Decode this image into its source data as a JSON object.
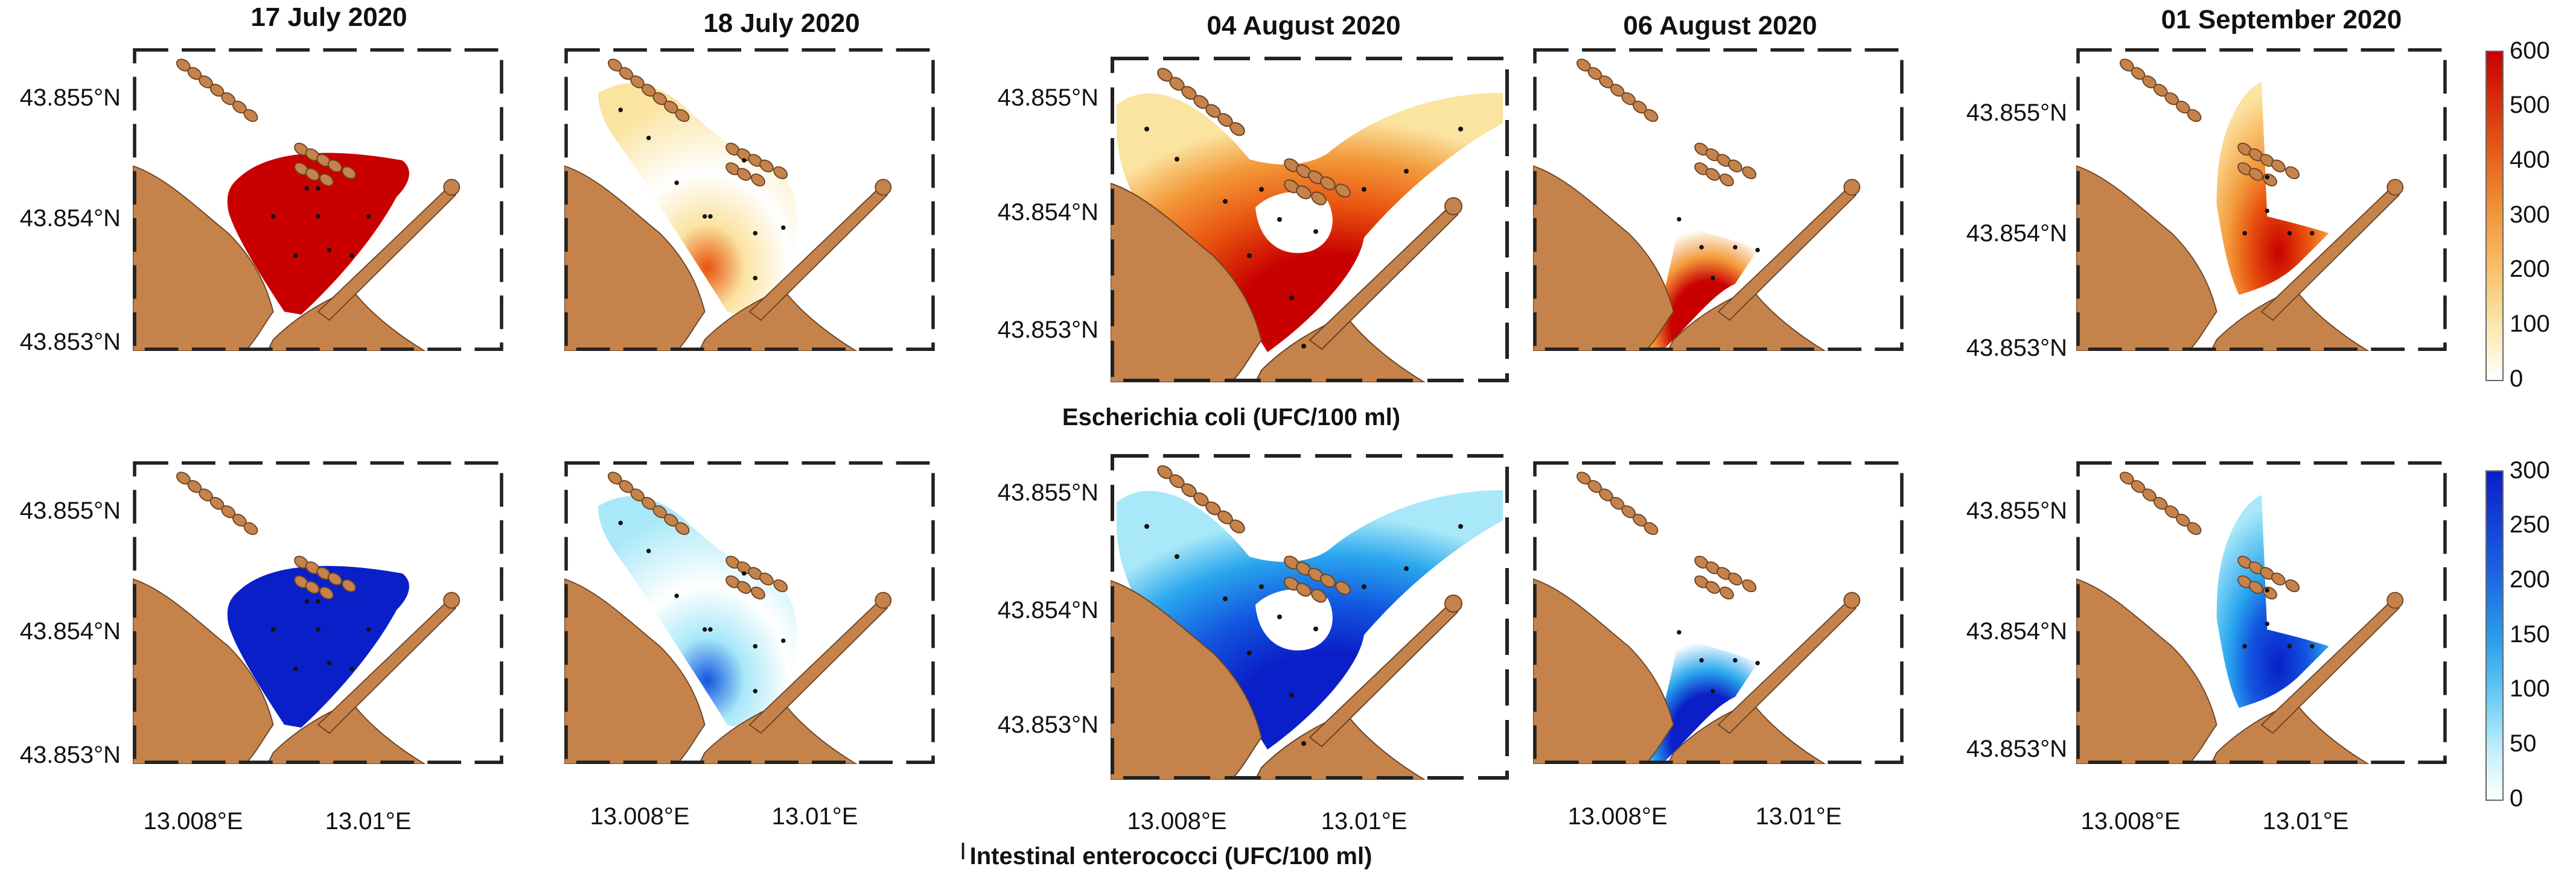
{
  "dates": [
    "17 July 2020",
    "18 July 2020",
    "04 August 2020",
    "06 August 2020",
    "01 September 2020"
  ],
  "latitude_labels": [
    "43.855°N",
    "43.854°N",
    "43.853°N"
  ],
  "longitude_labels": [
    "13.008°E",
    "13.01°E"
  ],
  "top_row": {
    "parameter": "Escherichia coli (UFC/100 ml)",
    "colorbar": {
      "min": 0,
      "max": 600,
      "ticks": [
        "600",
        "500",
        "400",
        "300",
        "200",
        "100",
        "0"
      ],
      "colors": [
        "#ffffff",
        "#fbe3a0",
        "#f39a3a",
        "#e8520e",
        "#c80000"
      ]
    }
  },
  "bottom_row": {
    "parameter": "Intestinal enterococci (UFC/100 ml)",
    "colorbar": {
      "min": 0,
      "max": 300,
      "ticks": [
        "300",
        "250",
        "200",
        "150",
        "100",
        "50",
        "0"
      ],
      "colors": [
        "#ffffff",
        "#a8e8f8",
        "#2aa7ee",
        "#1256e0",
        "#0a1fc8"
      ]
    }
  },
  "stray_mark": "I",
  "colors": {
    "land": "#c5834b",
    "land_edge": "#6b4325",
    "frame": "#222222"
  }
}
